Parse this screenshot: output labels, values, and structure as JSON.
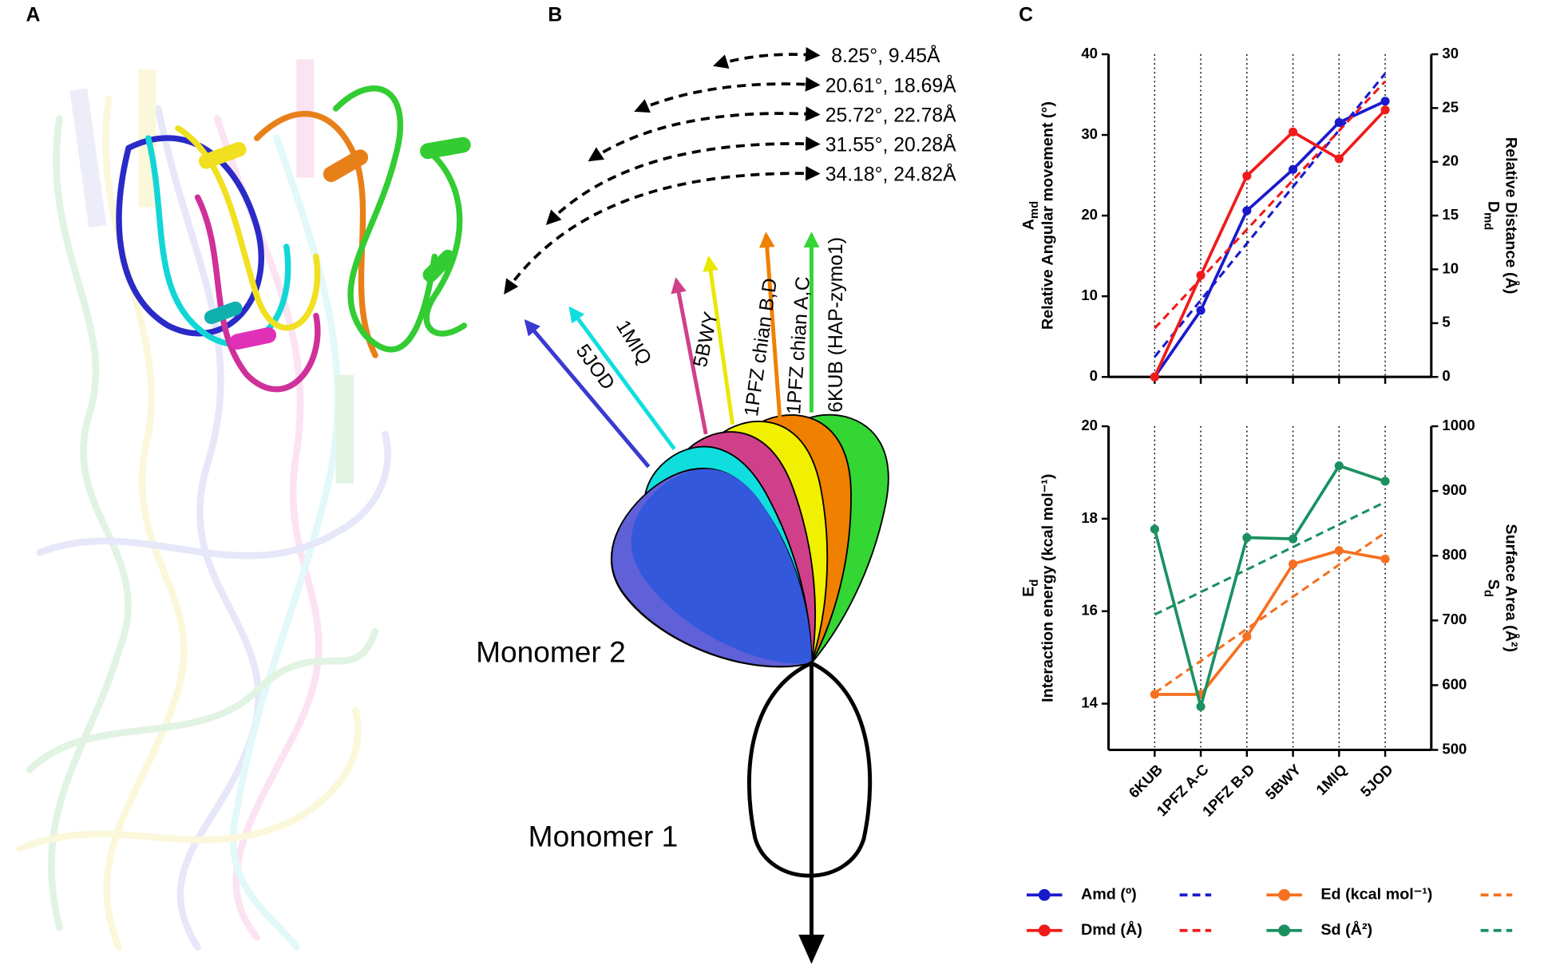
{
  "panel_labels": [
    "A",
    "B",
    "C"
  ],
  "diagram": {
    "angle_labels": [
      "8.25°, 9.45Å",
      "20.61°, 18.69Å",
      "25.72°, 22.78Å",
      "31.55°, 20.28Å",
      "34.18°, 24.82Å"
    ],
    "arrow_labels": [
      "6KUB (HAP-zymo1)",
      "1PFZ chian A,C",
      "1PFZ chian B,D",
      "5BWY",
      "1MIQ",
      "5JOD"
    ],
    "monomer_labels": [
      "Monomer 2",
      "Monomer 1"
    ]
  },
  "chart_data": [
    {
      "type": "line",
      "ylabel_symbol": {
        "text": "A",
        "sub": "md"
      },
      "ylabel": "Relative Angular movement (°)",
      "y2label_symbol": {
        "text": "D",
        "sub": "md"
      },
      "y2label": "Relative Distance (Å)",
      "ylim": [
        0,
        40
      ],
      "yticks": [
        0,
        10,
        20,
        30,
        40
      ],
      "y2lim": [
        0,
        30
      ],
      "y2ticks": [
        0,
        5,
        10,
        15,
        20,
        25,
        30
      ],
      "grid": true,
      "series": [
        {
          "name": "Amd (º)",
          "color": "#1a1acd",
          "values": [
            0,
            8.25,
            20.61,
            25.72,
            31.55,
            34.18
          ],
          "trend": [
            2.49,
            37.62
          ]
        },
        {
          "name": "Dmd (Å)",
          "color": "#f01a1a",
          "axis": "y2",
          "values": [
            0,
            9.45,
            18.69,
            22.78,
            20.28,
            24.82
          ],
          "trend": [
            4.52,
            27.48
          ]
        }
      ]
    },
    {
      "type": "line",
      "categories": [
        "6KUB",
        "1PFZ A-C",
        "1PFZ B-D",
        "5BWY",
        "1MIQ",
        "5JOD"
      ],
      "ylabel_symbol": {
        "text": "E",
        "sub": "d"
      },
      "ylabel": "Interaction energy (kcal mol⁻¹)",
      "y2label_symbol": {
        "text": "S",
        "sub": "d"
      },
      "y2label": "Surface Area (Å²)",
      "ylim": [
        13,
        20
      ],
      "yticks": [
        14,
        16,
        18,
        20
      ],
      "y2lim": [
        500,
        1000
      ],
      "y2ticks": [
        500,
        600,
        700,
        800,
        900,
        1000
      ],
      "grid": true,
      "series": [
        {
          "name": "Ed (kcal mol⁻¹)",
          "color": "#f57020",
          "values": [
            14.2,
            14.2,
            15.45,
            17.02,
            17.31,
            17.13
          ],
          "trend": [
            14.23,
            17.7
          ]
        },
        {
          "name": "Sd (Å²)",
          "color": "#1a9060",
          "axis": "y2",
          "values": [
            841,
            567,
            828,
            826,
            939,
            915
          ],
          "trend": [
            709,
            883
          ]
        }
      ]
    }
  ]
}
